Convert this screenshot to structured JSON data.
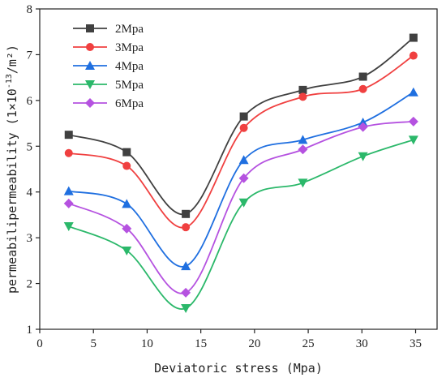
{
  "chart_data": {
    "type": "line",
    "title": "",
    "xlabel": "Deviatoric stress (Mpa)",
    "ylabel": "permeabilipermeability (1×10",
    "ylabel_exp": "-13",
    "ylabel_unit": "/m²)",
    "xlim": [
      0,
      37
    ],
    "ylim": [
      1,
      8
    ],
    "xticks": [
      0,
      5,
      10,
      15,
      20,
      25,
      30,
      35
    ],
    "yticks": [
      1,
      2,
      3,
      4,
      5,
      6,
      7,
      8
    ],
    "x": [
      2.7,
      8.1,
      13.6,
      19.0,
      24.5,
      30.1,
      34.8
    ],
    "grid": false,
    "legend_position": "top-left",
    "series": [
      {
        "name": "2Mpa",
        "marker": "square",
        "color": "#404040",
        "values": [
          5.25,
          4.87,
          3.52,
          5.65,
          6.23,
          6.52,
          7.37
        ]
      },
      {
        "name": "3Mpa",
        "marker": "circle",
        "color": "#f04040",
        "values": [
          4.85,
          4.57,
          3.23,
          5.4,
          6.08,
          6.25,
          6.98
        ]
      },
      {
        "name": "4Mpa",
        "marker": "triangle-up",
        "color": "#1f6fe0",
        "values": [
          4.02,
          3.74,
          2.38,
          4.7,
          5.14,
          5.52,
          6.18
        ]
      },
      {
        "name": "5Mpa",
        "marker": "triangle-down",
        "color": "#2bb86a",
        "values": [
          3.25,
          2.72,
          1.46,
          3.77,
          4.2,
          4.78,
          5.14
        ]
      },
      {
        "name": "6Mpa",
        "marker": "diamond",
        "color": "#b552e0",
        "values": [
          3.75,
          3.2,
          1.8,
          4.3,
          4.93,
          5.42,
          5.54
        ]
      }
    ]
  }
}
